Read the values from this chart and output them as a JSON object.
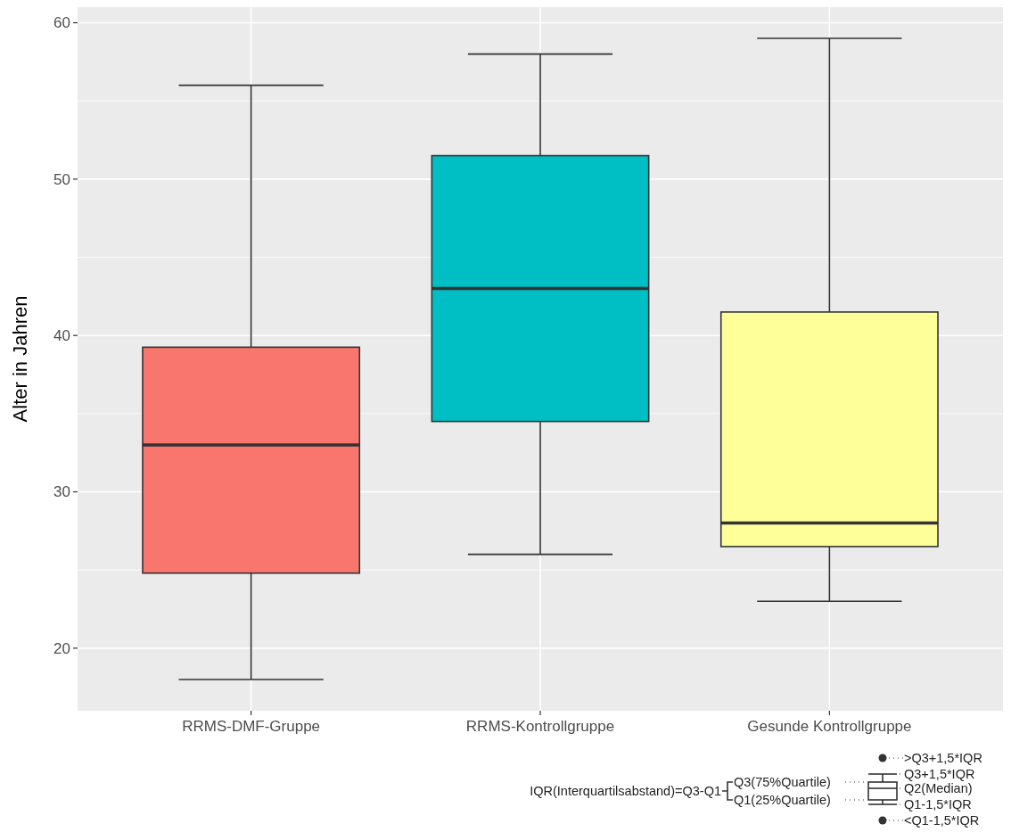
{
  "chart_data": {
    "type": "box",
    "ylabel": "Alter in Jahren",
    "categories": [
      "RRMS-DMF-Gruppe",
      "RRMS-Kontrollgruppe",
      "Gesunde Kontrollgruppe"
    ],
    "colors": [
      "#f8766d",
      "#00bfc4",
      "#ffff99"
    ],
    "boxes": [
      {
        "low": 18,
        "q1": 24.8,
        "median": 33,
        "q3": 39.25,
        "high": 56
      },
      {
        "low": 26,
        "q1": 34.5,
        "median": 43,
        "q3": 51.5,
        "high": 58
      },
      {
        "low": 23,
        "q1": 26.5,
        "median": 28,
        "q3": 41.5,
        "high": 59
      }
    ],
    "ylim": [
      16,
      61
    ],
    "yticks": [
      20,
      30,
      40,
      50,
      60
    ],
    "grid": true,
    "annotations": [
      ">Q3+1,5*IQR",
      "Q3+1,5*IQR",
      "Q2(Median)",
      "Q1-1,5*IQR",
      "<Q1-1,5*IQR",
      "Q3(75%Quartile)",
      "Q1(25%Quartile)",
      "IQR(Interquartilsabstand)=Q3-Q1"
    ]
  }
}
